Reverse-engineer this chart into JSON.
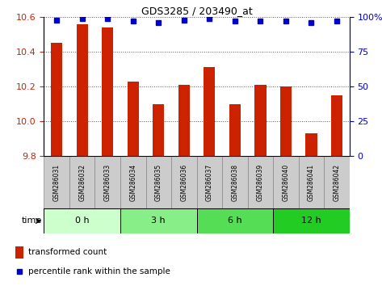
{
  "title": "GDS3285 / 203490_at",
  "samples": [
    "GSM286031",
    "GSM286032",
    "GSM286033",
    "GSM286034",
    "GSM286035",
    "GSM286036",
    "GSM286037",
    "GSM286038",
    "GSM286039",
    "GSM286040",
    "GSM286041",
    "GSM286042"
  ],
  "bar_values": [
    10.45,
    10.56,
    10.54,
    10.23,
    10.1,
    10.21,
    10.31,
    10.1,
    10.21,
    10.2,
    9.93,
    10.15
  ],
  "percentile_values": [
    98,
    99,
    99,
    97,
    96,
    98,
    99,
    97,
    97,
    97,
    96,
    97
  ],
  "bar_color": "#cc2200",
  "percentile_color": "#0000cc",
  "ylim_left": [
    9.8,
    10.6
  ],
  "ylim_right": [
    0,
    100
  ],
  "yticks_left": [
    9.8,
    10.0,
    10.2,
    10.4,
    10.6
  ],
  "yticks_right": [
    0,
    25,
    50,
    75,
    100
  ],
  "groups": [
    {
      "label": "0 h",
      "start": 0,
      "end": 3,
      "color": "#ccffcc"
    },
    {
      "label": "3 h",
      "start": 3,
      "end": 6,
      "color": "#88ee88"
    },
    {
      "label": "6 h",
      "start": 6,
      "end": 9,
      "color": "#55dd55"
    },
    {
      "label": "12 h",
      "start": 9,
      "end": 12,
      "color": "#22cc22"
    }
  ],
  "time_label": "time",
  "legend_bar_label": "transformed count",
  "legend_percentile_label": "percentile rank within the sample",
  "grid_color": "#555555",
  "sample_box_color": "#cccccc",
  "sample_box_edge": "#888888"
}
